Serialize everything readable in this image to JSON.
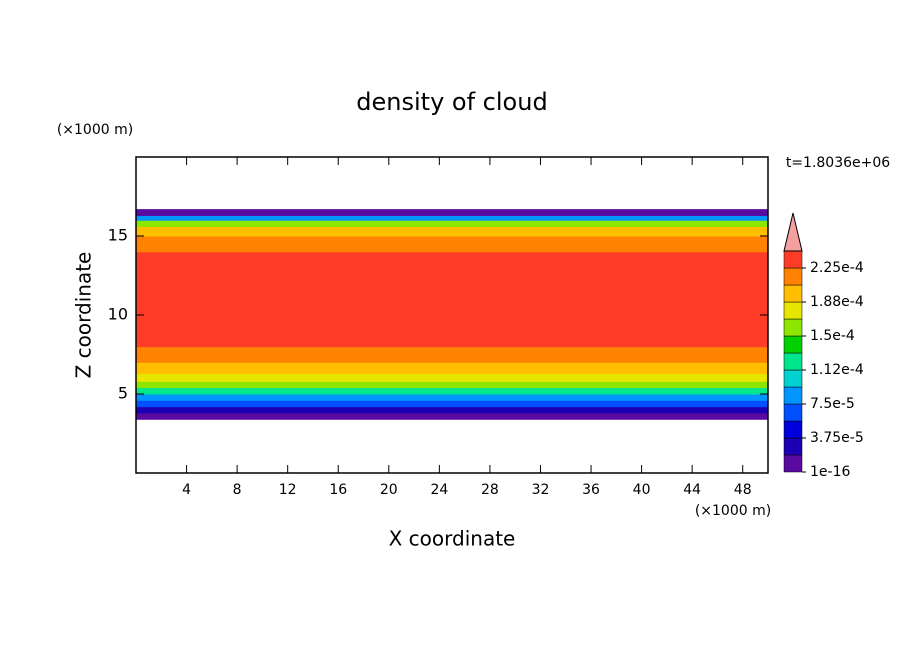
{
  "chart_data": {
    "type": "contour",
    "title": "density of cloud",
    "xlabel": "X coordinate",
    "ylabel": "Z coordinate",
    "xunit": "(×1000 m)",
    "yunit": "(×1000 m)",
    "time_label": "t=1.8036e+06",
    "xlim": [
      0,
      50
    ],
    "xticks": [
      4,
      8,
      12,
      16,
      20,
      24,
      28,
      32,
      36,
      40,
      44,
      48
    ],
    "ylim": [
      0,
      20
    ],
    "yticks": [
      5,
      10,
      15
    ],
    "z_bins": [
      3.4,
      3.8,
      4.2,
      4.6,
      5.0,
      5.4,
      5.8,
      6.3,
      7.0,
      8.0,
      9.0,
      14.0,
      15.0,
      15.6,
      16.0,
      16.3,
      16.7
    ],
    "values": [
      5e-06,
      3e-05,
      6e-05,
      9e-05,
      0.00012,
      0.00015,
      0.00017,
      0.00019,
      0.00021,
      0.000225,
      0.00023,
      0.00021,
      0.00019,
      0.00015,
      8e-05,
      1e-05
    ],
    "levels": [
      1e-16,
      1.875e-05,
      3.75e-05,
      5.625e-05,
      7.5e-05,
      9.375e-05,
      0.0001125,
      0.00013125,
      0.00015,
      0.00016875,
      0.0001875,
      0.00020625,
      0.000225
    ],
    "colors": [
      "#5a0aa0",
      "#1e00b4",
      "#0000dc",
      "#0050ff",
      "#0096ff",
      "#00d2d2",
      "#00e68c",
      "#00d200",
      "#8ce600",
      "#e6e600",
      "#ffbe00",
      "#ff8200",
      "#ff3c28"
    ],
    "extend_color": "#f4a0a0",
    "colorbar_ticks": [
      1e-16,
      {
        "value": 3.75e-05,
        "label": "3.75e-5"
      },
      {
        "value": 7.5e-05,
        "label": "7.5e-5"
      },
      {
        "value": 0.0001125,
        "label": "1.12e-4"
      },
      {
        "value": 0.00015,
        "label": "1.5e-4"
      },
      {
        "value": 0.0001875,
        "label": "1.88e-4"
      },
      {
        "value": 0.000225,
        "label": "2.25e-4"
      }
    ]
  }
}
